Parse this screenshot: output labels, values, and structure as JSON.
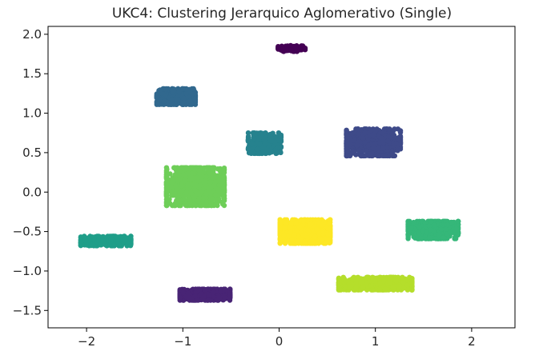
{
  "chart_data": {
    "type": "scatter",
    "title": "UKC4: Clustering Jerarquico Aglomerativo (Single)",
    "xlabel": "",
    "ylabel": "",
    "xlim": [
      -2.4,
      2.45
    ],
    "ylim": [
      -1.72,
      2.1
    ],
    "x_ticks": [
      -2,
      -1,
      0,
      1,
      2
    ],
    "x_tick_labels": [
      "−2",
      "−1",
      "0",
      "1",
      "2"
    ],
    "y_ticks": [
      -1.5,
      -1.0,
      -0.5,
      0.0,
      0.5,
      1.0,
      1.5,
      2.0
    ],
    "y_tick_labels": [
      "−1.5",
      "−1.0",
      "−0.5",
      "0.0",
      "0.5",
      "1.0",
      "1.5",
      "2.0"
    ],
    "grid": false,
    "legend": "none",
    "colormap": "viridis",
    "clusters": [
      {
        "id": 0,
        "color": "#440154",
        "center": [
          0.13,
          1.82
        ],
        "spread": [
          0.14,
          0.04
        ],
        "n": 120
      },
      {
        "id": 1,
        "color": "#482475",
        "center": [
          -0.77,
          -1.3
        ],
        "spread": [
          0.26,
          0.07
        ],
        "n": 520
      },
      {
        "id": 2,
        "color": "#3e4a89",
        "center": [
          0.98,
          0.63
        ],
        "spread": [
          0.28,
          0.17
        ],
        "n": 700
      },
      {
        "id": 3,
        "color": "#31688e",
        "center": [
          -1.07,
          1.21
        ],
        "spread": [
          0.2,
          0.1
        ],
        "n": 420
      },
      {
        "id": 4,
        "color": "#26828e",
        "center": [
          -0.15,
          0.62
        ],
        "spread": [
          0.17,
          0.13
        ],
        "n": 380
      },
      {
        "id": 5,
        "color": "#1f9e89",
        "center": [
          -1.8,
          -0.62
        ],
        "spread": [
          0.26,
          0.06
        ],
        "n": 420
      },
      {
        "id": 6,
        "color": "#35b779",
        "center": [
          1.6,
          -0.48
        ],
        "spread": [
          0.26,
          0.11
        ],
        "n": 560
      },
      {
        "id": 7,
        "color": "#6ece58",
        "center": [
          -0.87,
          0.07
        ],
        "spread": [
          0.3,
          0.24
        ],
        "n": 900
      },
      {
        "id": 8,
        "color": "#b5de2b",
        "center": [
          1.0,
          -1.16
        ],
        "spread": [
          0.38,
          0.08
        ],
        "n": 760
      },
      {
        "id": 9,
        "color": "#fde725",
        "center": [
          0.27,
          -0.5
        ],
        "spread": [
          0.26,
          0.15
        ],
        "n": 800
      }
    ]
  }
}
